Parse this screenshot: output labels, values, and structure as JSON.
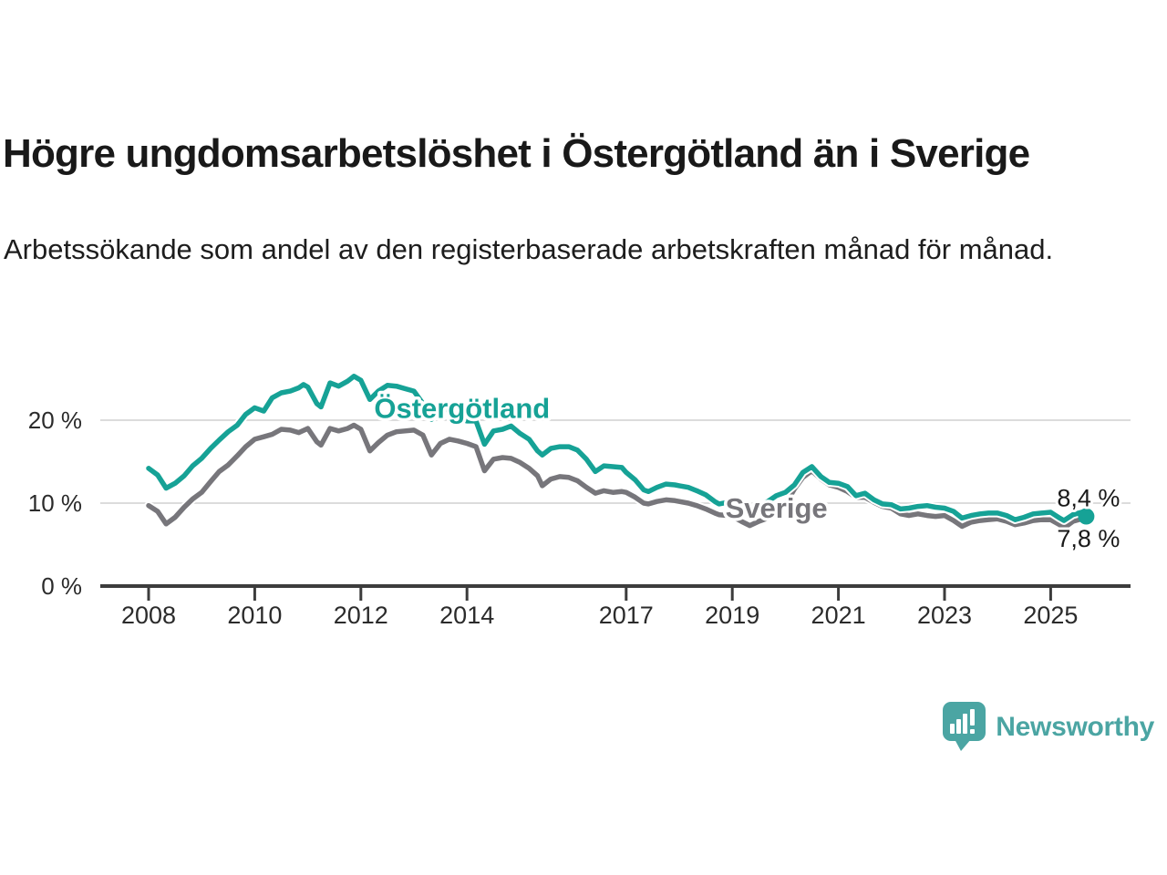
{
  "title": "Högre ungdomsarbetslöshet i Östergötland än i Sverige",
  "subtitle": "Arbetssökande som andel av den registerbaserade arbetskraften månad för månad.",
  "branding": {
    "name": "Newsworthy",
    "color": "#4ba5a3"
  },
  "chart_data": {
    "type": "line",
    "unit": "%",
    "colors": {
      "grid": "#dcdcdc",
      "axis": "#3c3c3c",
      "tick_label": "#2b2b2b",
      "annotation": "#1a1a1a",
      "background": "#ffffff"
    },
    "x_axis": {
      "ticks": [
        2008,
        2010,
        2012,
        2014,
        2017,
        2019,
        2021,
        2023,
        2025
      ],
      "range": [
        2007.05,
        2026.5
      ]
    },
    "y_axis": {
      "ticks": [
        {
          "value": 0,
          "label": "0 %"
        },
        {
          "value": 10,
          "label": "10 %"
        },
        {
          "value": 20,
          "label": "20 %"
        }
      ],
      "gridlines": [
        10,
        20
      ],
      "range": [
        0,
        27
      ]
    },
    "series": [
      {
        "name": "Östergötland",
        "color": "#16a296",
        "end_label": "8,4 %",
        "end_value": 8.4,
        "end_dot": true,
        "label_pos": {
          "year": 2012.25,
          "value": 21.5
        },
        "points": [
          [
            2008.0,
            14.2
          ],
          [
            2008.17,
            13.4
          ],
          [
            2008.33,
            11.8
          ],
          [
            2008.5,
            12.4
          ],
          [
            2008.67,
            13.3
          ],
          [
            2008.83,
            14.5
          ],
          [
            2009.0,
            15.4
          ],
          [
            2009.17,
            16.6
          ],
          [
            2009.33,
            17.6
          ],
          [
            2009.5,
            18.6
          ],
          [
            2009.67,
            19.4
          ],
          [
            2009.83,
            20.7
          ],
          [
            2010.0,
            21.5
          ],
          [
            2010.17,
            21.1
          ],
          [
            2010.33,
            22.7
          ],
          [
            2010.5,
            23.3
          ],
          [
            2010.67,
            23.5
          ],
          [
            2010.83,
            23.9
          ],
          [
            2010.92,
            24.3
          ],
          [
            2011.0,
            24.0
          ],
          [
            2011.17,
            22.0
          ],
          [
            2011.25,
            21.6
          ],
          [
            2011.42,
            24.5
          ],
          [
            2011.58,
            24.1
          ],
          [
            2011.75,
            24.7
          ],
          [
            2011.87,
            25.3
          ],
          [
            2012.0,
            24.8
          ],
          [
            2012.17,
            22.5
          ],
          [
            2012.33,
            23.5
          ],
          [
            2012.5,
            24.2
          ],
          [
            2012.67,
            24.1
          ],
          [
            2012.83,
            23.8
          ],
          [
            2013.0,
            23.5
          ],
          [
            2013.17,
            22.0
          ],
          [
            2013.33,
            20.1
          ],
          [
            2013.5,
            21.4
          ],
          [
            2013.67,
            21.2
          ],
          [
            2013.83,
            20.2
          ],
          [
            2014.0,
            19.9
          ],
          [
            2014.17,
            19.9
          ],
          [
            2014.33,
            17.1
          ],
          [
            2014.5,
            18.7
          ],
          [
            2014.67,
            18.9
          ],
          [
            2014.83,
            19.3
          ],
          [
            2015.0,
            18.4
          ],
          [
            2015.17,
            17.7
          ],
          [
            2015.33,
            16.3
          ],
          [
            2015.42,
            15.8
          ],
          [
            2015.58,
            16.6
          ],
          [
            2015.75,
            16.8
          ],
          [
            2015.92,
            16.8
          ],
          [
            2016.08,
            16.4
          ],
          [
            2016.25,
            15.3
          ],
          [
            2016.42,
            13.8
          ],
          [
            2016.58,
            14.5
          ],
          [
            2016.75,
            14.4
          ],
          [
            2016.92,
            14.3
          ],
          [
            2017.0,
            13.7
          ],
          [
            2017.17,
            12.8
          ],
          [
            2017.33,
            11.6
          ],
          [
            2017.42,
            11.4
          ],
          [
            2017.58,
            11.9
          ],
          [
            2017.75,
            12.3
          ],
          [
            2017.92,
            12.2
          ],
          [
            2018.0,
            12.1
          ],
          [
            2018.17,
            11.9
          ],
          [
            2018.33,
            11.5
          ],
          [
            2018.5,
            11.0
          ],
          [
            2018.67,
            10.2
          ],
          [
            2018.75,
            9.9
          ],
          [
            2018.92,
            10.1
          ],
          [
            2019.0,
            10.0
          ],
          [
            2019.17,
            9.6
          ],
          [
            2019.33,
            9.2
          ],
          [
            2019.5,
            9.6
          ],
          [
            2019.67,
            10.2
          ],
          [
            2019.83,
            10.9
          ],
          [
            2020.0,
            11.3
          ],
          [
            2020.17,
            12.2
          ],
          [
            2020.33,
            13.7
          ],
          [
            2020.5,
            14.4
          ],
          [
            2020.67,
            13.2
          ],
          [
            2020.83,
            12.5
          ],
          [
            2021.0,
            12.4
          ],
          [
            2021.17,
            12.0
          ],
          [
            2021.33,
            10.9
          ],
          [
            2021.5,
            11.2
          ],
          [
            2021.67,
            10.4
          ],
          [
            2021.83,
            9.9
          ],
          [
            2022.0,
            9.8
          ],
          [
            2022.17,
            9.3
          ],
          [
            2022.33,
            9.4
          ],
          [
            2022.5,
            9.6
          ],
          [
            2022.67,
            9.7
          ],
          [
            2022.83,
            9.5
          ],
          [
            2023.0,
            9.4
          ],
          [
            2023.17,
            9.0
          ],
          [
            2023.33,
            8.2
          ],
          [
            2023.5,
            8.5
          ],
          [
            2023.67,
            8.7
          ],
          [
            2023.83,
            8.8
          ],
          [
            2024.0,
            8.8
          ],
          [
            2024.17,
            8.5
          ],
          [
            2024.33,
            8.0
          ],
          [
            2024.5,
            8.3
          ],
          [
            2024.67,
            8.7
          ],
          [
            2024.83,
            8.8
          ],
          [
            2025.0,
            8.9
          ],
          [
            2025.17,
            8.2
          ],
          [
            2025.25,
            7.9
          ],
          [
            2025.42,
            8.6
          ],
          [
            2025.58,
            8.9
          ],
          [
            2025.67,
            8.4
          ]
        ]
      },
      {
        "name": "Sverige",
        "color": "#77767b",
        "end_label": "7,8 %",
        "end_value": 7.8,
        "end_dot": false,
        "label_pos": {
          "year": 2018.87,
          "value": 9.45
        },
        "points": [
          [
            2008.0,
            9.7
          ],
          [
            2008.17,
            9.0
          ],
          [
            2008.33,
            7.5
          ],
          [
            2008.5,
            8.3
          ],
          [
            2008.67,
            9.5
          ],
          [
            2008.83,
            10.5
          ],
          [
            2009.0,
            11.3
          ],
          [
            2009.17,
            12.6
          ],
          [
            2009.33,
            13.8
          ],
          [
            2009.5,
            14.6
          ],
          [
            2009.67,
            15.7
          ],
          [
            2009.83,
            16.8
          ],
          [
            2010.0,
            17.7
          ],
          [
            2010.17,
            18.0
          ],
          [
            2010.33,
            18.3
          ],
          [
            2010.5,
            18.9
          ],
          [
            2010.67,
            18.8
          ],
          [
            2010.83,
            18.5
          ],
          [
            2011.0,
            19.0
          ],
          [
            2011.17,
            17.4
          ],
          [
            2011.25,
            17.0
          ],
          [
            2011.42,
            19.0
          ],
          [
            2011.58,
            18.7
          ],
          [
            2011.75,
            19.0
          ],
          [
            2011.87,
            19.4
          ],
          [
            2012.0,
            18.9
          ],
          [
            2012.17,
            16.3
          ],
          [
            2012.33,
            17.3
          ],
          [
            2012.5,
            18.2
          ],
          [
            2012.67,
            18.6
          ],
          [
            2012.83,
            18.7
          ],
          [
            2013.0,
            18.8
          ],
          [
            2013.17,
            18.2
          ],
          [
            2013.33,
            15.8
          ],
          [
            2013.5,
            17.2
          ],
          [
            2013.67,
            17.7
          ],
          [
            2013.83,
            17.5
          ],
          [
            2014.0,
            17.2
          ],
          [
            2014.17,
            16.8
          ],
          [
            2014.33,
            13.9
          ],
          [
            2014.5,
            15.3
          ],
          [
            2014.67,
            15.5
          ],
          [
            2014.83,
            15.4
          ],
          [
            2015.0,
            14.9
          ],
          [
            2015.17,
            14.2
          ],
          [
            2015.33,
            13.3
          ],
          [
            2015.42,
            12.1
          ],
          [
            2015.58,
            12.9
          ],
          [
            2015.75,
            13.2
          ],
          [
            2015.92,
            13.1
          ],
          [
            2016.08,
            12.7
          ],
          [
            2016.25,
            11.9
          ],
          [
            2016.42,
            11.2
          ],
          [
            2016.58,
            11.5
          ],
          [
            2016.75,
            11.3
          ],
          [
            2016.92,
            11.4
          ],
          [
            2017.0,
            11.3
          ],
          [
            2017.17,
            10.7
          ],
          [
            2017.33,
            10.0
          ],
          [
            2017.42,
            9.9
          ],
          [
            2017.58,
            10.2
          ],
          [
            2017.75,
            10.4
          ],
          [
            2017.92,
            10.3
          ],
          [
            2018.0,
            10.2
          ],
          [
            2018.17,
            10.0
          ],
          [
            2018.33,
            9.7
          ],
          [
            2018.5,
            9.3
          ],
          [
            2018.67,
            8.8
          ],
          [
            2018.75,
            8.6
          ],
          [
            2018.92,
            8.5
          ],
          [
            2019.0,
            8.4
          ],
          [
            2019.17,
            7.8
          ],
          [
            2019.33,
            7.3
          ],
          [
            2019.5,
            7.8
          ],
          [
            2019.67,
            8.2
          ],
          [
            2019.83,
            8.6
          ],
          [
            2020.0,
            9.8
          ],
          [
            2020.17,
            11.7
          ],
          [
            2020.33,
            13.1
          ],
          [
            2020.5,
            13.9
          ],
          [
            2020.67,
            12.9
          ],
          [
            2020.83,
            12.2
          ],
          [
            2021.0,
            11.9
          ],
          [
            2021.17,
            11.4
          ],
          [
            2021.33,
            10.7
          ],
          [
            2021.5,
            10.7
          ],
          [
            2021.67,
            10.1
          ],
          [
            2021.83,
            9.6
          ],
          [
            2022.0,
            9.4
          ],
          [
            2022.17,
            8.7
          ],
          [
            2022.33,
            8.5
          ],
          [
            2022.5,
            8.7
          ],
          [
            2022.67,
            8.5
          ],
          [
            2022.83,
            8.4
          ],
          [
            2023.0,
            8.5
          ],
          [
            2023.17,
            7.9
          ],
          [
            2023.33,
            7.2
          ],
          [
            2023.5,
            7.7
          ],
          [
            2023.67,
            7.9
          ],
          [
            2023.83,
            8.0
          ],
          [
            2024.0,
            8.1
          ],
          [
            2024.17,
            7.8
          ],
          [
            2024.33,
            7.4
          ],
          [
            2024.5,
            7.6
          ],
          [
            2024.67,
            7.9
          ],
          [
            2024.83,
            8.0
          ],
          [
            2025.0,
            8.0
          ],
          [
            2025.17,
            7.4
          ],
          [
            2025.25,
            7.0
          ],
          [
            2025.42,
            7.8
          ],
          [
            2025.58,
            8.1
          ],
          [
            2025.67,
            7.8
          ]
        ]
      }
    ]
  }
}
